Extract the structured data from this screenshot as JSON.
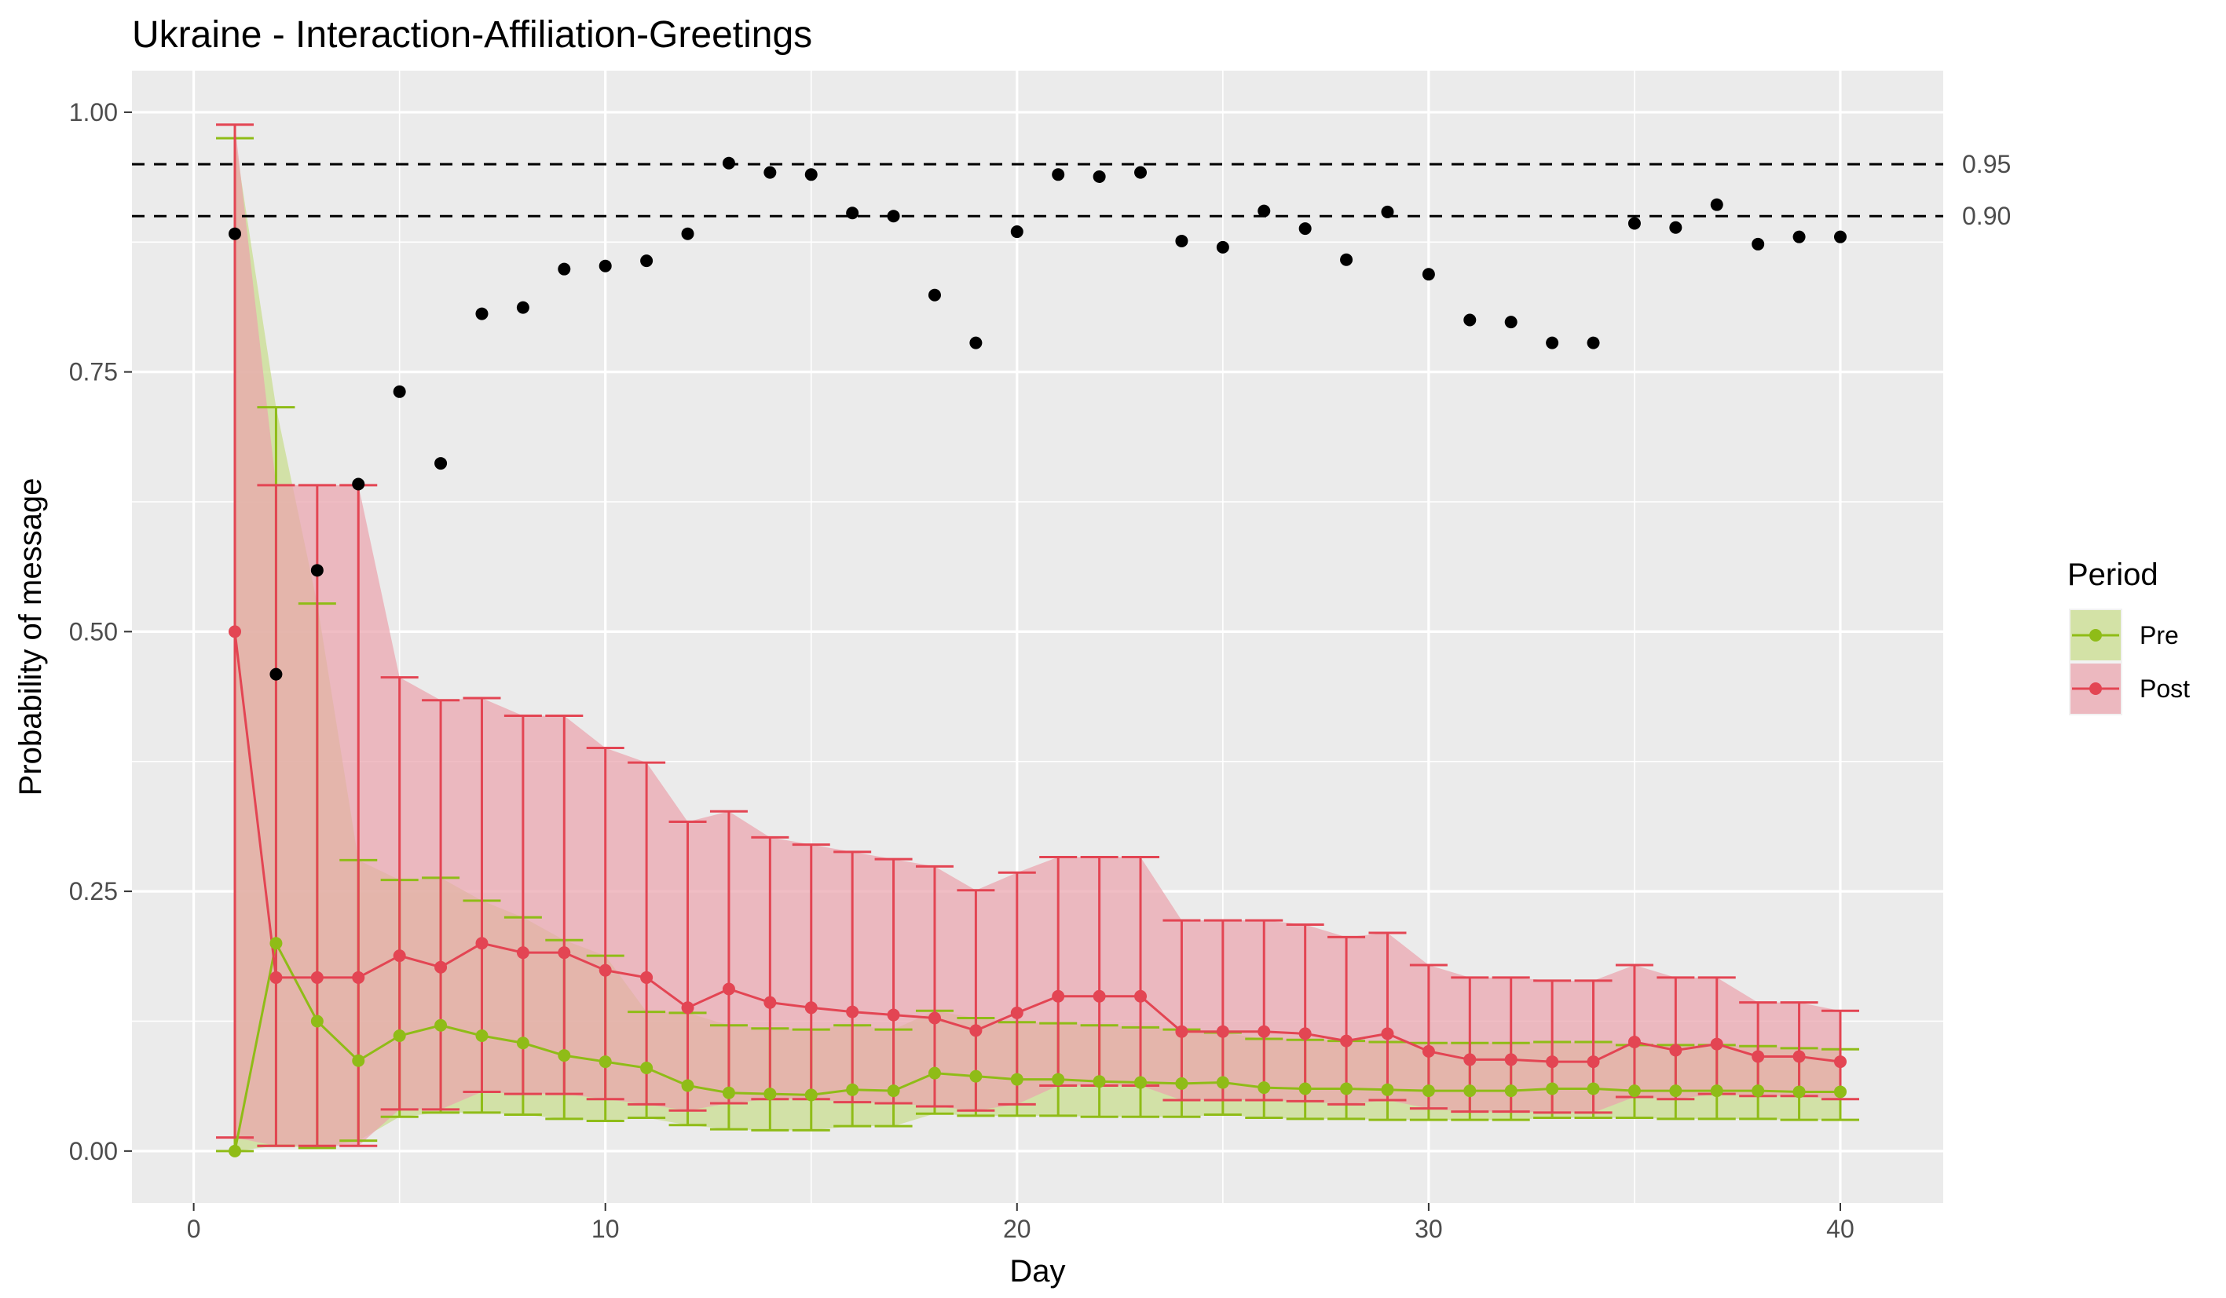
{
  "chart_data": {
    "type": "line",
    "title": "Ukraine - Interaction-Affiliation-Greetings",
    "xlabel": "Day",
    "ylabel": "Probability of message",
    "xlim": [
      -1.5,
      42.5
    ],
    "ylim": [
      -0.05,
      1.04
    ],
    "x_ticks": [
      0,
      10,
      20,
      30,
      40
    ],
    "x_tick_labels": [
      "0",
      "10",
      "20",
      "30",
      "40"
    ],
    "y_ticks": [
      0,
      0.25,
      0.5,
      0.75,
      1
    ],
    "y_tick_labels": [
      "0.00",
      "0.25",
      "0.50",
      "0.75",
      "1.00"
    ],
    "reference_lines": [
      {
        "value": 0.95,
        "label": "0.95"
      },
      {
        "value": 0.9,
        "label": "0.90"
      }
    ],
    "legend": {
      "title": "Period",
      "position": "right",
      "entries": [
        {
          "label": "Pre",
          "color": "#8fbc17",
          "fill": "#c8dc8c"
        },
        {
          "label": "Post",
          "color": "#e34553",
          "fill": "#eaa4ad"
        }
      ]
    },
    "x": [
      1,
      2,
      3,
      4,
      5,
      6,
      7,
      8,
      9,
      10,
      11,
      12,
      13,
      14,
      15,
      16,
      17,
      18,
      19,
      20,
      21,
      22,
      23,
      24,
      25,
      26,
      27,
      28,
      29,
      30,
      31,
      32,
      33,
      34,
      35,
      36,
      37,
      38,
      39,
      40
    ],
    "black_points": [
      0.883,
      0.459,
      0.559,
      0.642,
      0.731,
      0.662,
      0.806,
      0.812,
      0.849,
      0.852,
      0.857,
      0.883,
      0.951,
      0.942,
      0.94,
      0.903,
      0.9,
      0.824,
      0.778,
      0.885,
      0.94,
      0.938,
      0.942,
      0.876,
      0.87,
      0.905,
      0.888,
      0.858,
      0.904,
      0.844,
      0.8,
      0.798,
      0.778,
      0.778,
      0.893,
      0.889,
      0.911,
      0.873,
      0.88,
      0.88
    ],
    "series": [
      {
        "name": "Pre",
        "color": "#8fbc17",
        "fill": "#c8dc8c",
        "values": [
          0.0,
          0.2,
          0.125,
          0.087,
          0.111,
          0.121,
          0.111,
          0.104,
          0.092,
          0.086,
          0.08,
          0.063,
          0.056,
          0.055,
          0.054,
          0.059,
          0.058,
          0.075,
          0.072,
          0.069,
          0.069,
          0.067,
          0.066,
          0.065,
          0.066,
          0.061,
          0.06,
          0.06,
          0.059,
          0.058,
          0.058,
          0.058,
          0.06,
          0.06,
          0.058,
          0.058,
          0.058,
          0.058,
          0.057,
          0.057
        ],
        "lower": [
          0.0,
          0.005,
          0.003,
          0.01,
          0.033,
          0.037,
          0.037,
          0.035,
          0.031,
          0.029,
          0.032,
          0.025,
          0.021,
          0.02,
          0.02,
          0.024,
          0.024,
          0.036,
          0.034,
          0.034,
          0.034,
          0.033,
          0.033,
          0.033,
          0.035,
          0.032,
          0.031,
          0.031,
          0.03,
          0.03,
          0.03,
          0.03,
          0.032,
          0.032,
          0.032,
          0.031,
          0.031,
          0.031,
          0.03,
          0.03
        ],
        "upper": [
          0.975,
          0.716,
          0.527,
          0.28,
          0.261,
          0.263,
          0.241,
          0.225,
          0.203,
          0.188,
          0.134,
          0.133,
          0.121,
          0.118,
          0.117,
          0.121,
          0.117,
          0.135,
          0.128,
          0.124,
          0.123,
          0.121,
          0.119,
          0.117,
          0.114,
          0.108,
          0.107,
          0.106,
          0.105,
          0.104,
          0.104,
          0.104,
          0.105,
          0.105,
          0.102,
          0.102,
          0.102,
          0.101,
          0.099,
          0.098
        ]
      },
      {
        "name": "Post",
        "color": "#e34553",
        "fill": "#eaa4ad",
        "values": [
          0.5,
          0.167,
          0.167,
          0.167,
          0.188,
          0.177,
          0.2,
          0.191,
          0.191,
          0.174,
          0.167,
          0.138,
          0.156,
          0.143,
          0.138,
          0.134,
          0.131,
          0.128,
          0.116,
          0.133,
          0.149,
          0.149,
          0.149,
          0.115,
          0.115,
          0.115,
          0.113,
          0.106,
          0.113,
          0.096,
          0.088,
          0.088,
          0.086,
          0.086,
          0.105,
          0.097,
          0.103,
          0.091,
          0.091,
          0.086
        ],
        "lower": [
          0.013,
          0.005,
          0.005,
          0.005,
          0.04,
          0.04,
          0.057,
          0.055,
          0.055,
          0.05,
          0.045,
          0.039,
          0.046,
          0.05,
          0.05,
          0.047,
          0.046,
          0.043,
          0.039,
          0.045,
          0.063,
          0.063,
          0.063,
          0.049,
          0.049,
          0.049,
          0.048,
          0.045,
          0.049,
          0.041,
          0.038,
          0.038,
          0.037,
          0.037,
          0.052,
          0.05,
          0.055,
          0.053,
          0.053,
          0.05
        ],
        "upper": [
          0.988,
          0.641,
          0.641,
          0.641,
          0.456,
          0.434,
          0.436,
          0.419,
          0.419,
          0.388,
          0.374,
          0.317,
          0.327,
          0.302,
          0.295,
          0.288,
          0.281,
          0.274,
          0.251,
          0.268,
          0.283,
          0.283,
          0.283,
          0.222,
          0.222,
          0.222,
          0.218,
          0.206,
          0.21,
          0.179,
          0.167,
          0.167,
          0.164,
          0.164,
          0.179,
          0.167,
          0.167,
          0.143,
          0.143,
          0.135
        ]
      }
    ]
  }
}
